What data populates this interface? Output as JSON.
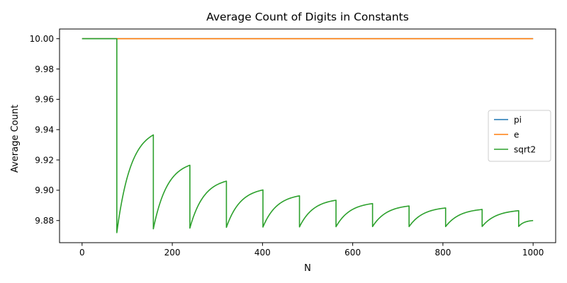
{
  "chart_data": {
    "type": "line",
    "title": "Average Count of Digits in Constants",
    "xlabel": "N",
    "ylabel": "Average Count",
    "xlim": [
      -50,
      1050
    ],
    "ylim": [
      9.8654,
      10.0064
    ],
    "x_ticks": [
      0,
      200,
      400,
      600,
      800,
      1000
    ],
    "x_tick_labels": [
      "0",
      "200",
      "400",
      "600",
      "800",
      "1000"
    ],
    "y_ticks": [
      9.88,
      9.9,
      9.92,
      9.94,
      9.96,
      9.98,
      10.0
    ],
    "y_tick_labels": [
      "9.88",
      "9.90",
      "9.92",
      "9.94",
      "9.96",
      "9.98",
      "10.00"
    ],
    "grid": false,
    "legend_position": "center-right",
    "series": [
      {
        "name": "pi",
        "color": "#1f77b4",
        "points": [
          [
            0,
            10.0
          ],
          [
            1000,
            10.0
          ]
        ]
      },
      {
        "name": "e",
        "color": "#ff7f0e",
        "points": [
          [
            0,
            10.0
          ],
          [
            1000,
            10.0
          ]
        ]
      },
      {
        "name": "sqrt2",
        "color": "#2ca02c",
        "segments": [
          {
            "from": 0,
            "to": 77,
            "start": 10.0,
            "end": 10.0
          },
          {
            "from": 77,
            "to": 158,
            "start": 9.872,
            "end": 9.9365
          },
          {
            "from": 158,
            "to": 239,
            "start": 9.8745,
            "end": 9.9165
          },
          {
            "from": 239,
            "to": 320,
            "start": 9.875,
            "end": 9.906
          },
          {
            "from": 320,
            "to": 401,
            "start": 9.8755,
            "end": 9.9002
          },
          {
            "from": 401,
            "to": 482,
            "start": 9.8757,
            "end": 9.8963
          },
          {
            "from": 482,
            "to": 563,
            "start": 9.8758,
            "end": 9.8934
          },
          {
            "from": 563,
            "to": 644,
            "start": 9.8759,
            "end": 9.8912
          },
          {
            "from": 644,
            "to": 725,
            "start": 9.876,
            "end": 9.8896
          },
          {
            "from": 725,
            "to": 806,
            "start": 9.876,
            "end": 9.8883
          },
          {
            "from": 806,
            "to": 887,
            "start": 9.876,
            "end": 9.8873
          },
          {
            "from": 887,
            "to": 968,
            "start": 9.8761,
            "end": 9.8865
          },
          {
            "from": 968,
            "to": 1000,
            "start": 9.8761,
            "end": 9.88
          }
        ]
      }
    ]
  }
}
